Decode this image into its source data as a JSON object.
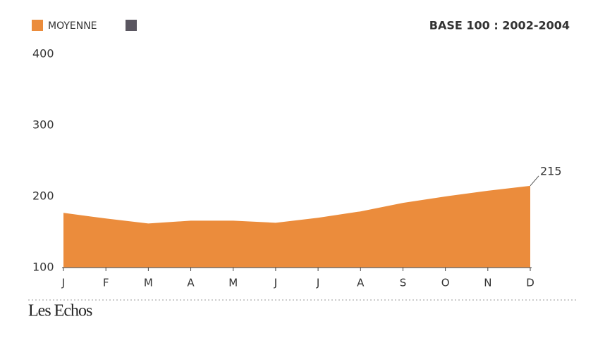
{
  "chart_data": {
    "type": "area",
    "annotation": "BASE 100 : 2002-2004",
    "source": "Les Echos",
    "categories": [
      "J",
      "F",
      "M",
      "A",
      "M",
      "J",
      "J",
      "A",
      "S",
      "O",
      "N",
      "D"
    ],
    "series": [
      {
        "name": "MOYENNE",
        "color": "#eb8c3c",
        "values": [
          177,
          169,
          162,
          166,
          166,
          163,
          170,
          179,
          191,
          200,
          208,
          215
        ]
      }
    ],
    "ylim": [
      100,
      400
    ],
    "yticks": [
      100,
      200,
      300,
      400
    ],
    "grid": false
  }
}
